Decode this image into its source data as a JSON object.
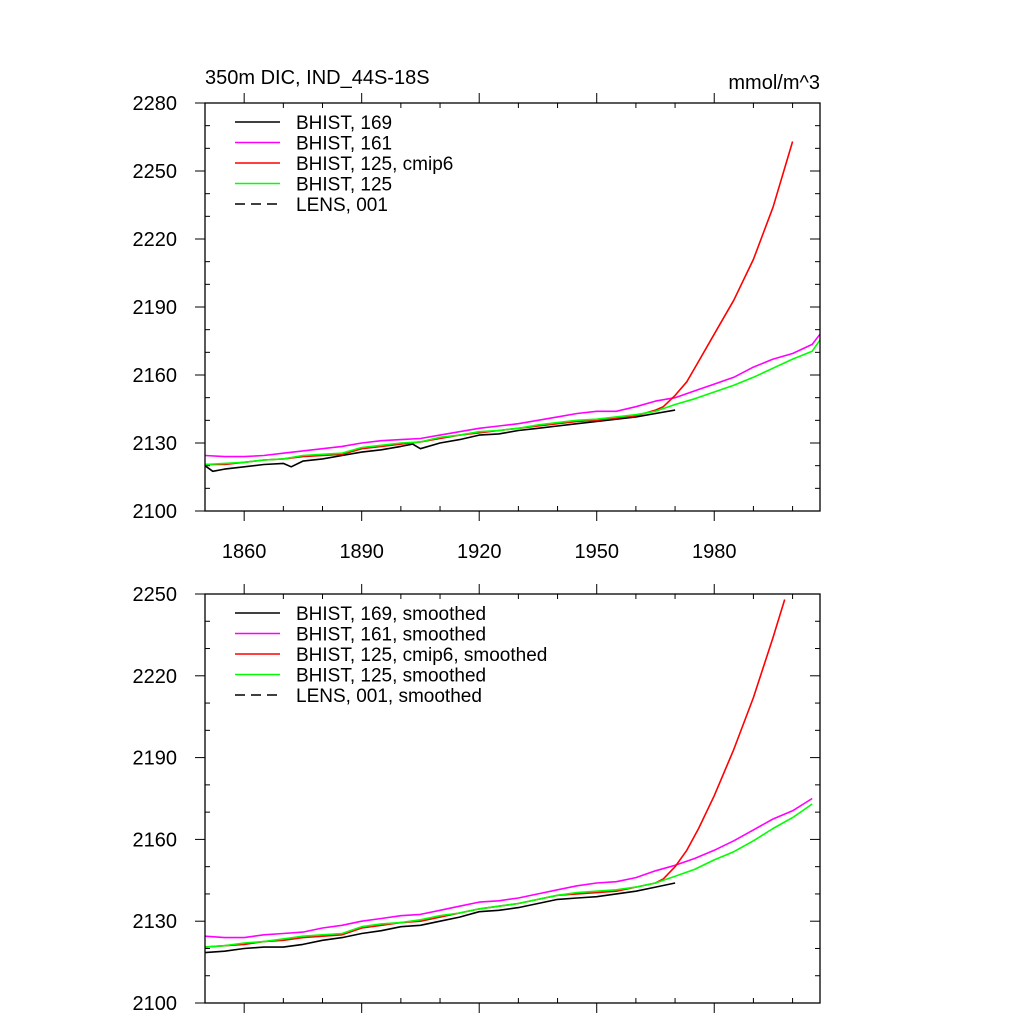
{
  "chart_data": [
    {
      "type": "line",
      "title": "350m DIC, IND_44S-18S",
      "units": "mmol/m^3",
      "xlim": [
        1850,
        2007
      ],
      "ylim": [
        2100,
        2280
      ],
      "xticks": [
        1860,
        1890,
        1920,
        1950,
        1980
      ],
      "yticks": [
        2100,
        2130,
        2160,
        2190,
        2220,
        2250,
        2280
      ],
      "show_xtick_labels": true,
      "grid": false,
      "legend_position": "top-left",
      "series": [
        {
          "name": "BHIST, 169",
          "color": "#000000",
          "dash": "solid",
          "x": [
            1850,
            1852,
            1855,
            1860,
            1865,
            1870,
            1872,
            1875,
            1880,
            1885,
            1890,
            1895,
            1900,
            1903,
            1905,
            1910,
            1915,
            1920,
            1925,
            1930,
            1935,
            1940,
            1945,
            1950,
            1955,
            1960,
            1965,
            1970
          ],
          "values": [
            2120,
            2117.5,
            2118.5,
            2119.5,
            2120.5,
            2121,
            2119.5,
            2122,
            2123,
            2124.5,
            2126,
            2127,
            2128.5,
            2129.5,
            2127.5,
            2130,
            2131.5,
            2133.5,
            2134,
            2135.5,
            2136.5,
            2137.5,
            2138.5,
            2139.5,
            2140.5,
            2141.5,
            2143,
            2144.5
          ]
        },
        {
          "name": "BHIST, 161",
          "color": "#ff00ff",
          "dash": "solid",
          "x": [
            1850,
            1855,
            1860,
            1865,
            1870,
            1875,
            1880,
            1885,
            1890,
            1895,
            1900,
            1905,
            1910,
            1915,
            1920,
            1925,
            1930,
            1935,
            1940,
            1945,
            1950,
            1955,
            1960,
            1965,
            1970,
            1975,
            1980,
            1985,
            1990,
            1995,
            2000,
            2005,
            2007
          ],
          "values": [
            2124.5,
            2124,
            2124,
            2124.5,
            2125.5,
            2126.5,
            2127.5,
            2128.5,
            2130,
            2131,
            2131.5,
            2132,
            2133.5,
            2135,
            2136.5,
            2137.5,
            2138.5,
            2140,
            2141.5,
            2143,
            2144,
            2144,
            2146,
            2148.5,
            2150,
            2153,
            2156,
            2159,
            2163.5,
            2167,
            2169.5,
            2173.5,
            2178
          ]
        },
        {
          "name": "BHIST, 125, cmip6",
          "color": "#ff0000",
          "dash": "solid",
          "x": [
            1850,
            1855,
            1860,
            1865,
            1870,
            1875,
            1880,
            1885,
            1890,
            1895,
            1900,
            1905,
            1910,
            1915,
            1920,
            1925,
            1930,
            1935,
            1940,
            1945,
            1950,
            1955,
            1960,
            1965,
            1967,
            1970,
            1973,
            1976,
            1980,
            1985,
            1990,
            1995,
            2000
          ],
          "values": [
            2120.5,
            2120.5,
            2121.5,
            2122.5,
            2123,
            2124,
            2124.5,
            2125,
            2127.5,
            2128.5,
            2129.5,
            2130.5,
            2132,
            2133.5,
            2134.5,
            2135.5,
            2136.5,
            2137.5,
            2138.5,
            2139.5,
            2140,
            2141,
            2142,
            2144.5,
            2146,
            2151,
            2157,
            2166,
            2178,
            2193,
            2211,
            2234,
            2263
          ]
        },
        {
          "name": "BHIST, 125",
          "color": "#00ff00",
          "dash": "solid",
          "x": [
            1850,
            1855,
            1860,
            1865,
            1870,
            1875,
            1880,
            1885,
            1890,
            1895,
            1900,
            1905,
            1910,
            1915,
            1920,
            1925,
            1930,
            1935,
            1940,
            1945,
            1950,
            1955,
            1960,
            1965,
            1970,
            1975,
            1980,
            1985,
            1990,
            1995,
            2000,
            2005,
            2007
          ],
          "values": [
            2120.5,
            2121,
            2121.5,
            2122.5,
            2123,
            2124.5,
            2125,
            2125.5,
            2128,
            2129,
            2130,
            2130.5,
            2132.5,
            2133.5,
            2135,
            2135.5,
            2136.5,
            2138,
            2139,
            2140,
            2140.5,
            2141.5,
            2142.5,
            2144,
            2147,
            2149.5,
            2152.5,
            2155.5,
            2159,
            2163,
            2167,
            2170.5,
            2175.5
          ]
        },
        {
          "name": "LENS, 001",
          "color": "#000000",
          "dash": "dashed",
          "x": [],
          "values": []
        }
      ]
    },
    {
      "type": "line",
      "title": "",
      "units": "",
      "xlim": [
        1850,
        2007
      ],
      "ylim": [
        2100,
        2250
      ],
      "xticks": [
        1860,
        1890,
        1920,
        1950,
        1980
      ],
      "yticks": [
        2100,
        2130,
        2160,
        2190,
        2220,
        2250
      ],
      "show_xtick_labels": false,
      "grid": false,
      "legend_position": "top-left",
      "series": [
        {
          "name": "BHIST, 169, smoothed",
          "color": "#000000",
          "dash": "solid",
          "x": [
            1850,
            1855,
            1860,
            1865,
            1870,
            1875,
            1880,
            1885,
            1890,
            1895,
            1900,
            1905,
            1910,
            1915,
            1920,
            1925,
            1930,
            1935,
            1940,
            1945,
            1950,
            1955,
            1960,
            1965,
            1970
          ],
          "values": [
            2118.5,
            2119,
            2120,
            2120.5,
            2120.5,
            2121.5,
            2123,
            2124,
            2125.5,
            2126.5,
            2128,
            2128.5,
            2130,
            2131.5,
            2133.5,
            2134,
            2135,
            2136.5,
            2138,
            2138.5,
            2139,
            2140,
            2141,
            2142.5,
            2144
          ]
        },
        {
          "name": "BHIST, 161, smoothed",
          "color": "#ff00ff",
          "dash": "solid",
          "x": [
            1850,
            1855,
            1860,
            1865,
            1870,
            1875,
            1880,
            1885,
            1890,
            1895,
            1900,
            1905,
            1910,
            1915,
            1920,
            1925,
            1930,
            1935,
            1940,
            1945,
            1950,
            1955,
            1960,
            1965,
            1970,
            1975,
            1980,
            1985,
            1990,
            1995,
            2000,
            2005
          ],
          "values": [
            2124.5,
            2124,
            2124,
            2125,
            2125.5,
            2126,
            2127.5,
            2128.5,
            2130,
            2131,
            2132,
            2132.5,
            2134,
            2135.5,
            2137,
            2137.5,
            2138.5,
            2140,
            2141.5,
            2143,
            2144,
            2144.5,
            2146,
            2148.5,
            2150.5,
            2153,
            2156,
            2159.5,
            2163.5,
            2167.5,
            2170.5,
            2175
          ]
        },
        {
          "name": "BHIST, 125, cmip6, smoothed",
          "color": "#ff0000",
          "dash": "solid",
          "x": [
            1850,
            1855,
            1860,
            1865,
            1870,
            1875,
            1880,
            1885,
            1890,
            1895,
            1900,
            1905,
            1910,
            1915,
            1920,
            1925,
            1930,
            1935,
            1940,
            1945,
            1950,
            1955,
            1960,
            1965,
            1967,
            1970,
            1973,
            1976,
            1980,
            1985,
            1990,
            1995,
            1998
          ],
          "values": [
            2120.5,
            2121,
            2121.5,
            2122.5,
            2123,
            2124,
            2124.5,
            2125,
            2127.5,
            2128.5,
            2129.5,
            2130,
            2131.5,
            2133,
            2134.5,
            2135.5,
            2136.5,
            2138,
            2139.5,
            2140,
            2140.5,
            2141,
            2142.5,
            2144,
            2145.5,
            2150,
            2156,
            2164,
            2176,
            2193,
            2212,
            2234,
            2248
          ]
        },
        {
          "name": "BHIST, 125, smoothed",
          "color": "#00ff00",
          "dash": "solid",
          "x": [
            1850,
            1855,
            1860,
            1865,
            1870,
            1875,
            1880,
            1885,
            1890,
            1895,
            1900,
            1905,
            1910,
            1915,
            1920,
            1925,
            1930,
            1935,
            1940,
            1945,
            1950,
            1955,
            1960,
            1965,
            1970,
            1975,
            1980,
            1985,
            1990,
            1995,
            2000,
            2005
          ],
          "values": [
            2120.5,
            2121,
            2122,
            2122.5,
            2123.5,
            2124.5,
            2125,
            2125.5,
            2128,
            2129,
            2129.5,
            2130.5,
            2132,
            2133,
            2134.5,
            2135.5,
            2136.5,
            2138,
            2139.5,
            2140.5,
            2141,
            2141.5,
            2142.5,
            2144,
            2146.5,
            2149,
            2152.5,
            2155.5,
            2159.5,
            2164,
            2168,
            2173
          ]
        },
        {
          "name": "LENS, 001, smoothed",
          "color": "#000000",
          "dash": "dashed",
          "x": [],
          "values": []
        }
      ]
    }
  ]
}
